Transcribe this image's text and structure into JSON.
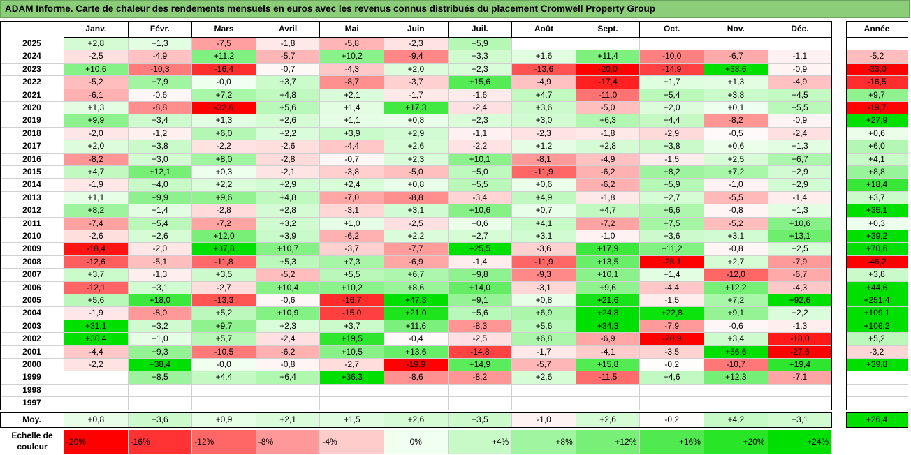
{
  "title": "ADAM Informe. Carte de chaleur des rendements mensuels en euros avec les revenus connus distribués du placement Cromwell Property Group",
  "chart_data": {
    "type": "heatmap",
    "columns": [
      "Janv.",
      "Févr.",
      "Mars",
      "Avril",
      "Mai",
      "Juin",
      "Juil.",
      "Août",
      "Sept.",
      "Oct.",
      "Nov.",
      "Déc."
    ],
    "annual_header": "Année",
    "rows": [
      {
        "year": "2025",
        "values": [
          "+2,8",
          "+1,3",
          "-7,5",
          "-1,8",
          "-5,8",
          "-2,3",
          "+5,9",
          "",
          "",
          "",
          "",
          ""
        ],
        "annual": ""
      },
      {
        "year": "2024",
        "values": [
          "-2,5",
          "-4,9",
          "+11,2",
          "-5,7",
          "+10,2",
          "-9,4",
          "+3,3",
          "+1,6",
          "+11,4",
          "-10,0",
          "-6,7",
          "-1,1"
        ],
        "annual": "-5,2"
      },
      {
        "year": "2023",
        "values": [
          "+10,6",
          "-10,3",
          "-16,4",
          "-0,7",
          "-4,3",
          "+2,0",
          "+2,3",
          "-13,6",
          "-20,0",
          "-14,9",
          "+38,6",
          "-0,9"
        ],
        "annual": "-33,0"
      },
      {
        "year": "2022",
        "values": [
          "-5,2",
          "+7,9",
          "-0,0",
          "+3,7",
          "-8,7",
          "-3,7",
          "+15,6",
          "-4,9",
          "-17,4",
          "+1,7",
          "+1,3",
          "-4,9"
        ],
        "annual": "-16,5"
      },
      {
        "year": "2021",
        "values": [
          "-6,1",
          "-0,6",
          "+7,2",
          "+4,8",
          "+2,1",
          "-1,7",
          "-1,6",
          "+4,7",
          "-11,0",
          "+5,4",
          "+3,8",
          "+4,5"
        ],
        "annual": "+9,7"
      },
      {
        "year": "2020",
        "values": [
          "+1,3",
          "-8,8",
          "-32,6",
          "+5,6",
          "+1,4",
          "+17,3",
          "-2,4",
          "+3,6",
          "-5,0",
          "+2,0",
          "+0,1",
          "+5,5"
        ],
        "annual": "-19,7"
      },
      {
        "year": "2019",
        "values": [
          "+9,9",
          "+3,4",
          "+1,3",
          "+2,6",
          "+1,1",
          "+0,8",
          "+2,3",
          "+3,0",
          "+6,3",
          "+4,4",
          "-8,2",
          "-0,9"
        ],
        "annual": "+27,9"
      },
      {
        "year": "2018",
        "values": [
          "-2,0",
          "-1,2",
          "+6,0",
          "+2,2",
          "+3,9",
          "+2,9",
          "-1,1",
          "-2,3",
          "-1,8",
          "-2,9",
          "-0,5",
          "-2,4"
        ],
        "annual": "+0,6"
      },
      {
        "year": "2017",
        "values": [
          "+2,0",
          "+3,8",
          "-2,2",
          "-2,6",
          "-4,4",
          "+2,6",
          "-2,2",
          "+1,2",
          "+2,8",
          "+3,8",
          "+0,6",
          "+1,3"
        ],
        "annual": "+6,0"
      },
      {
        "year": "2016",
        "values": [
          "-8,2",
          "+3,0",
          "+8,0",
          "-2,8",
          "-0,7",
          "+2,3",
          "+10,1",
          "-8,1",
          "-4,9",
          "-1,5",
          "+2,5",
          "+6,7"
        ],
        "annual": "+4,1"
      },
      {
        "year": "2015",
        "values": [
          "+4,7",
          "+12,1",
          "+0,3",
          "-2,1",
          "-3,8",
          "-5,0",
          "+5,0",
          "-11,9",
          "-6,2",
          "+8,2",
          "+7,2",
          "+2,9"
        ],
        "annual": "+8,8"
      },
      {
        "year": "2014",
        "values": [
          "-1,9",
          "+4,0",
          "+2,2",
          "+2,9",
          "+2,4",
          "+0,8",
          "+5,5",
          "+0,6",
          "-6,2",
          "+5,9",
          "-1,0",
          "+2,9"
        ],
        "annual": "+18,4"
      },
      {
        "year": "2013",
        "values": [
          "+1,1",
          "+9,9",
          "+9,6",
          "+4,8",
          "-7,0",
          "-8,8",
          "-3,4",
          "+4,9",
          "-1,8",
          "+2,7",
          "-5,5",
          "-1,4"
        ],
        "annual": "+3,7"
      },
      {
        "year": "2012",
        "values": [
          "+8,2",
          "+1,4",
          "-2,8",
          "+2,8",
          "-3,1",
          "+3,1",
          "+10,6",
          "+0,7",
          "+4,7",
          "+6,6",
          "-0,8",
          "+1,3"
        ],
        "annual": "+35,1"
      },
      {
        "year": "2011",
        "values": [
          "-7,4",
          "+5,4",
          "-7,2",
          "+3,2",
          "+1,0",
          "-2,5",
          "+0,6",
          "+4,1",
          "-7,2",
          "+7,5",
          "-5,2",
          "+10,6"
        ],
        "annual": "+0,3"
      },
      {
        "year": "2010",
        "values": [
          "-2,6",
          "+2,6",
          "+12,0",
          "+3,9",
          "-6,2",
          "+2,2",
          "+2,7",
          "+3,1",
          "-1,0",
          "+3,6",
          "+3,1",
          "+13,1"
        ],
        "annual": "+39,2"
      },
      {
        "year": "2009",
        "values": [
          "-18,4",
          "-2,0",
          "+37,8",
          "+10,7",
          "-3,7",
          "-7,7",
          "+25,5",
          "-3,6",
          "+17,9",
          "+11,2",
          "-0,8",
          "+2,5"
        ],
        "annual": "+70,6"
      },
      {
        "year": "2008",
        "values": [
          "-12,6",
          "-5,1",
          "-11,8",
          "+5,3",
          "+7,3",
          "-6,9",
          "-1,4",
          "-11,9",
          "+13,5",
          "-28,1",
          "+2,7",
          "-7,9"
        ],
        "annual": "-46,2"
      },
      {
        "year": "2007",
        "values": [
          "+3,7",
          "-1,3",
          "+3,5",
          "-5,2",
          "+5,5",
          "+6,7",
          "+9,8",
          "-9,3",
          "+10,1",
          "+1,4",
          "-12,0",
          "-6,7"
        ],
        "annual": "+3,8"
      },
      {
        "year": "2006",
        "values": [
          "-12,1",
          "+3,1",
          "-2,7",
          "+10,4",
          "+10,2",
          "+8,6",
          "+14,0",
          "-3,1",
          "+9,6",
          "-4,4",
          "+12,2",
          "-4,3"
        ],
        "annual": "+44,6"
      },
      {
        "year": "2005",
        "values": [
          "+5,6",
          "+18,0",
          "-13,3",
          "-0,6",
          "-16,7",
          "+47,3",
          "+9,1",
          "+0,8",
          "+21,6",
          "-1,5",
          "+7,2",
          "+92,6"
        ],
        "annual": "+251,4"
      },
      {
        "year": "2004",
        "values": [
          "-1,9",
          "-8,0",
          "+5,2",
          "+10,9",
          "-15,0",
          "+21,0",
          "+5,6",
          "+6,9",
          "+24,8",
          "+22,8",
          "+9,1",
          "+2,2"
        ],
        "annual": "+109,1"
      },
      {
        "year": "2003",
        "values": [
          "+31,1",
          "+3,2",
          "+9,7",
          "+2,3",
          "+3,7",
          "+11,6",
          "-8,3",
          "+5,6",
          "+34,3",
          "-7,9",
          "-0,6",
          "-1,3"
        ],
        "annual": "+106,2"
      },
      {
        "year": "2002",
        "values": [
          "+30,4",
          "+1,0",
          "+5,7",
          "-2,4",
          "+19,5",
          "-0,4",
          "-2,5",
          "+6,8",
          "-6,9",
          "-20,9",
          "+3,4",
          "-18,0"
        ],
        "annual": "+5,2"
      },
      {
        "year": "2001",
        "values": [
          "-4,4",
          "+9,3",
          "-10,5",
          "-6,2",
          "+10,5",
          "+13,6",
          "-14,8",
          "-1,7",
          "-4,1",
          "-3,5",
          "+56,6",
          "-27,6"
        ],
        "annual": "-3,2"
      },
      {
        "year": "2000",
        "values": [
          "-2,2",
          "+38,4",
          "-0,0",
          "-0,8",
          "-2,7",
          "-19,9",
          "+14,9",
          "-5,7",
          "+15,8",
          "-0,2",
          "-10,7",
          "+19,4"
        ],
        "annual": "+39,8"
      },
      {
        "year": "1999",
        "values": [
          "",
          "+8,5",
          "+4,4",
          "+6,4",
          "+36,3",
          "-8,6",
          "-8,2",
          "+2,6",
          "-11,5",
          "+4,6",
          "+12,3",
          "-7,1"
        ],
        "annual": ""
      },
      {
        "year": "1998",
        "values": [
          "",
          "",
          "",
          "",
          "",
          "",
          "",
          "",
          "",
          "",
          "",
          ""
        ],
        "annual": ""
      },
      {
        "year": "1997",
        "values": [
          "",
          "",
          "",
          "",
          "",
          "",
          "",
          "",
          "",
          "",
          "",
          ""
        ],
        "annual": ""
      }
    ],
    "average": {
      "label": "Moy.",
      "values": [
        "+0,8",
        "+3,6",
        "+0,9",
        "+2,1",
        "+1,5",
        "+2,6",
        "+3,5",
        "-1,0",
        "+2,6",
        "-0,2",
        "+4,2",
        "+3,1"
      ],
      "annual": "+26,4"
    },
    "scale": {
      "label_line1": "Echelle de",
      "label_line2": "couleur",
      "steps": [
        {
          "label": "-20%",
          "value": -20
        },
        {
          "label": "-16%",
          "value": -16
        },
        {
          "label": "-12%",
          "value": -12
        },
        {
          "label": "-8%",
          "value": -8
        },
        {
          "label": "-4%",
          "value": -4
        },
        {
          "label": "0%",
          "value": 0
        },
        {
          "label": "+4%",
          "value": 4
        },
        {
          "label": "+8%",
          "value": 8
        },
        {
          "label": "+12%",
          "value": 12
        },
        {
          "label": "+16%",
          "value": 16
        },
        {
          "label": "+20%",
          "value": 20
        },
        {
          "label": "+24%",
          "value": 24
        }
      ]
    },
    "colors": {
      "negative": "#ff0000",
      "neutral": "#ffffff",
      "positive": "#00e000"
    }
  }
}
